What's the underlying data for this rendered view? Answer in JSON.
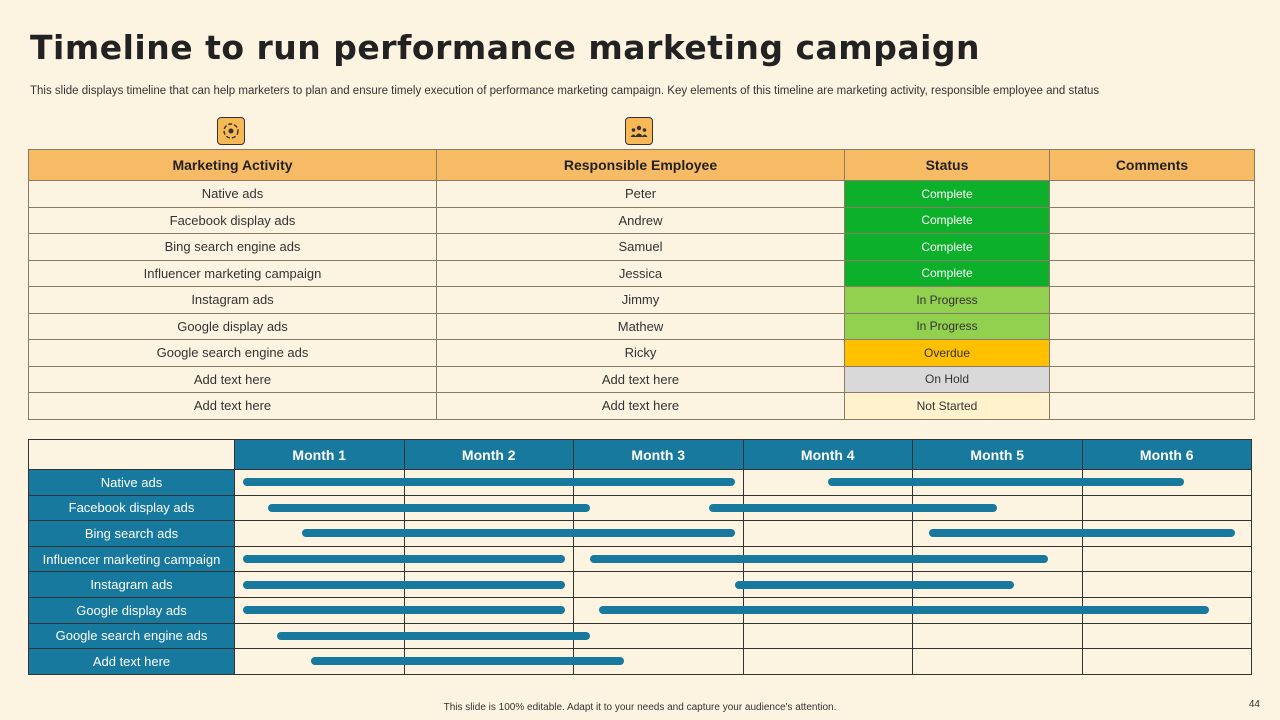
{
  "title": "Timeline to run performance marketing campaign",
  "subtitle": "This slide displays timeline that can help marketers to plan and ensure timely execution of performance marketing campaign. Key elements of this timeline are marketing activity, responsible employee and status",
  "icons": [
    "gear-cycle-icon",
    "team-icon"
  ],
  "colors": {
    "header_orange": "#f7bb66",
    "gantt_blue": "#17799e",
    "complete": "#0db02b",
    "in_progress": "#92d050",
    "overdue": "#ffc000",
    "on_hold": "#d9d9d9",
    "not_started": "#fff2cc"
  },
  "status_table": {
    "headers": [
      "Marketing Activity",
      "Responsible Employee",
      "Status",
      "Comments"
    ],
    "rows": [
      {
        "activity": "Native ads",
        "employee": "Peter",
        "status": "Complete",
        "color": "#0db02b",
        "text_color": "#ffffff",
        "comments": ""
      },
      {
        "activity": "Facebook display ads",
        "employee": "Andrew",
        "status": "Complete",
        "color": "#0db02b",
        "text_color": "#ffffff",
        "comments": ""
      },
      {
        "activity": "Bing search engine ads",
        "employee": "Samuel",
        "status": "Complete",
        "color": "#0db02b",
        "text_color": "#ffffff",
        "comments": ""
      },
      {
        "activity": "Influencer marketing campaign",
        "employee": "Jessica",
        "status": "Complete",
        "color": "#0db02b",
        "text_color": "#ffffff",
        "comments": ""
      },
      {
        "activity": "Instagram ads",
        "employee": "Jimmy",
        "status": "In Progress",
        "color": "#92d050",
        "text_color": "#333333",
        "comments": ""
      },
      {
        "activity": "Google display ads",
        "employee": "Mathew",
        "status": "In Progress",
        "color": "#92d050",
        "text_color": "#333333",
        "comments": ""
      },
      {
        "activity": "Google search engine ads",
        "employee": "Ricky",
        "status": "Overdue",
        "color": "#ffc000",
        "text_color": "#333333",
        "comments": ""
      },
      {
        "activity": "Add text here",
        "employee": "Add text here",
        "status": "On Hold",
        "color": "#d9d9d9",
        "text_color": "#333333",
        "comments": ""
      },
      {
        "activity": "Add text here",
        "employee": "Add text here",
        "status": "Not Started",
        "color": "#fff2cc",
        "text_color": "#333333",
        "comments": ""
      }
    ]
  },
  "gantt": {
    "months": [
      "Month 1",
      "Month 2",
      "Month 3",
      "Month 4",
      "Month 5",
      "Month 6"
    ],
    "rows": [
      {
        "activity": "Native ads",
        "bars": [
          [
            0.05,
            2.95
          ],
          [
            3.5,
            5.6
          ]
        ]
      },
      {
        "activity": "Facebook display ads",
        "bars": [
          [
            0.2,
            2.1
          ],
          [
            2.8,
            4.5
          ]
        ]
      },
      {
        "activity": "Bing search ads",
        "bars": [
          [
            0.4,
            2.95
          ],
          [
            4.1,
            5.9
          ]
        ]
      },
      {
        "activity": "Influencer  marketing campaign",
        "bars": [
          [
            0.05,
            1.95
          ],
          [
            2.1,
            4.8
          ]
        ]
      },
      {
        "activity": "Instagram ads",
        "bars": [
          [
            0.05,
            1.95
          ],
          [
            2.95,
            4.6
          ]
        ]
      },
      {
        "activity": "Google display ads",
        "bars": [
          [
            0.05,
            1.95
          ],
          [
            2.15,
            5.75
          ]
        ]
      },
      {
        "activity": "Google search engine ads",
        "bars": [
          [
            0.25,
            2.1
          ]
        ]
      },
      {
        "activity": "Add text here",
        "bars": [
          [
            0.45,
            2.3
          ]
        ]
      }
    ]
  },
  "footer": "This slide is 100% editable. Adapt it to your needs and capture your audience's attention.",
  "page_number": "44"
}
